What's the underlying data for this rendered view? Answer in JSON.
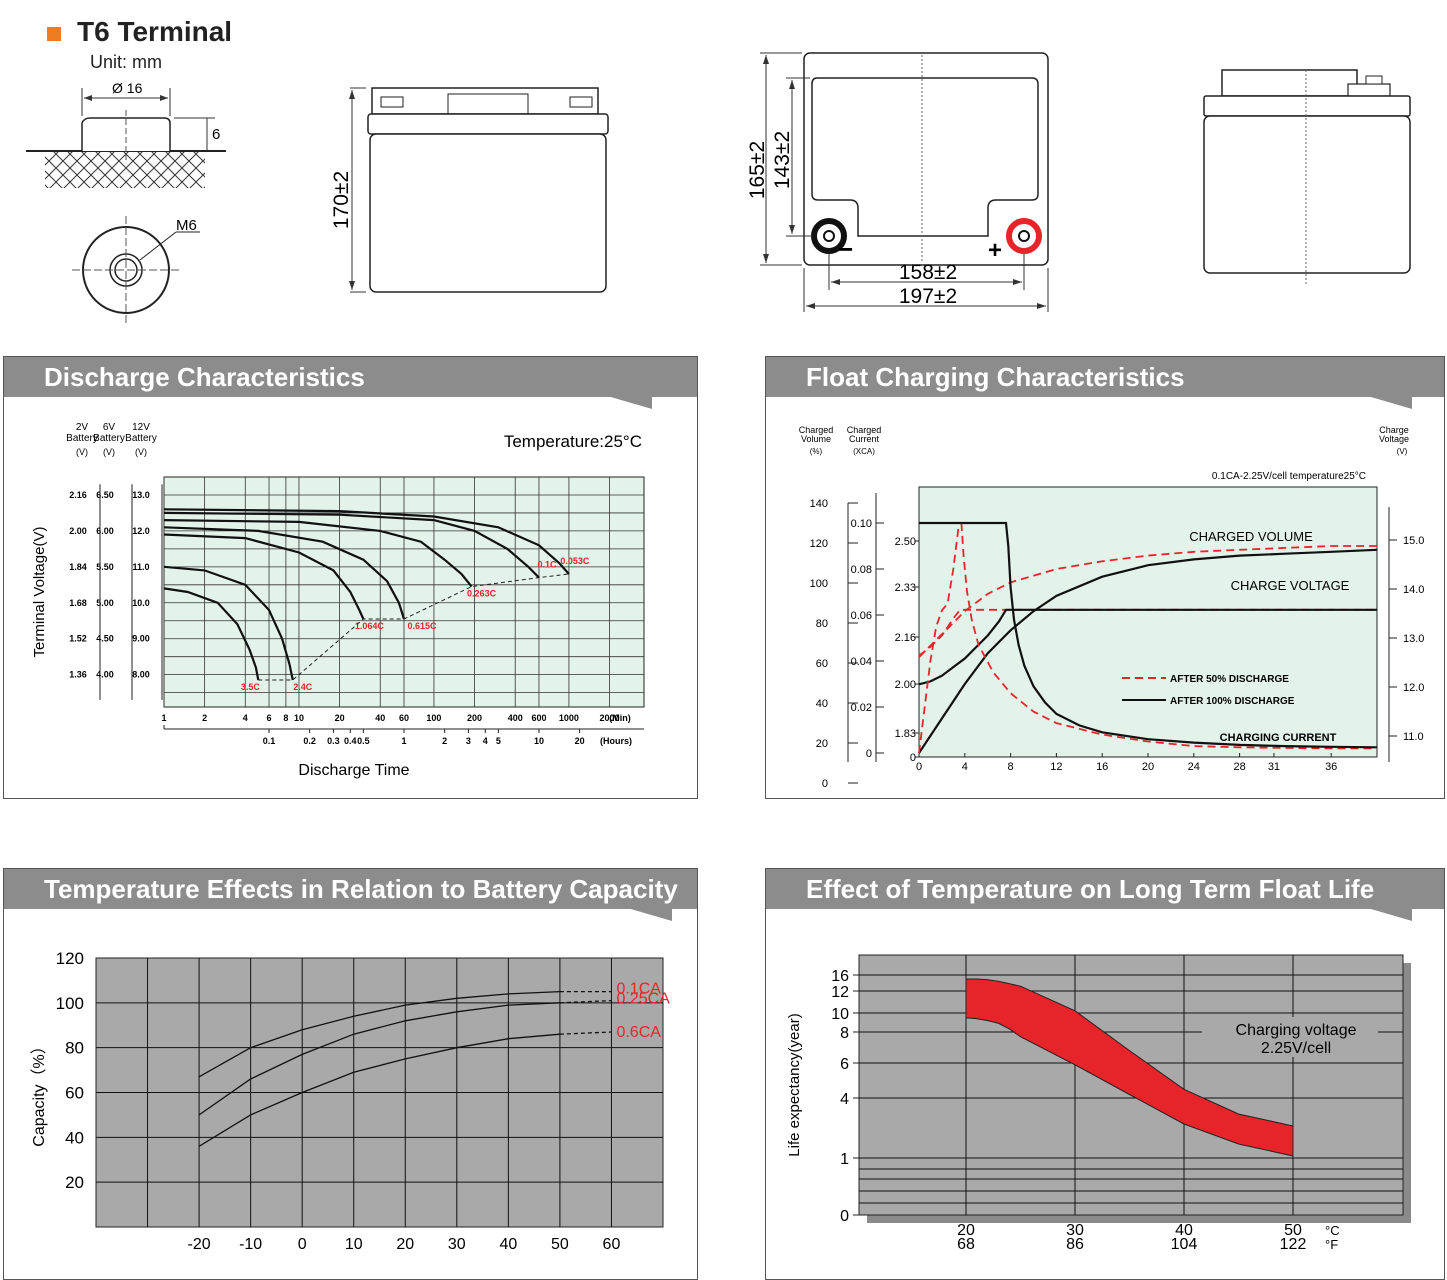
{
  "header": {
    "title": "T6 Terminal",
    "unit": "Unit: mm"
  },
  "drawings": {
    "terminal_dia": "Ø 16",
    "terminal_height": "6",
    "thread": "M6",
    "height_total": "170±2",
    "height_case": "165±2",
    "height_inner": "143±2",
    "width_terminal": "158±2",
    "width_total": "197±2",
    "minus": "−",
    "plus": "+"
  },
  "panels": {
    "discharge": "Discharge Characteristics",
    "float": "Float Charging Characteristics",
    "temp_capacity": "Temperature Effects in Relation to Battery Capacity",
    "float_life": "Effect of Temperature on Long Term Float Life"
  },
  "colors": {
    "accent": "#ee7d22",
    "header": "#8c8c8c",
    "chart_bg": "#e3f3e9",
    "red": "#e8242b",
    "gray_plot": "#a9a9a9"
  },
  "chart_data": [
    {
      "type": "line",
      "title": "Discharge Characteristics",
      "annotation": "Temperature:25°C",
      "ylabel": "Terminal Voltage(V)",
      "xlabel": "Discharge Time",
      "y_columns": [
        {
          "header": "2V Battery",
          "unit": "(V)",
          "ticks": [
            "2.16",
            "2.00",
            "1.84",
            "1.68",
            "1.52",
            "1.36"
          ]
        },
        {
          "header": "6V Battery",
          "unit": "(V)",
          "ticks": [
            "6.50",
            "6.00",
            "5.50",
            "5.00",
            "4.50",
            "4.00"
          ]
        },
        {
          "header": "12V Battery",
          "unit": "(V)",
          "ticks": [
            "13.0",
            "12.0",
            "11.0",
            "10.0",
            "9.00",
            "8.00"
          ]
        }
      ],
      "x_min_ticks": [
        "1",
        "2",
        "4",
        "6",
        "8",
        "10",
        "20",
        "40",
        "60",
        "100",
        "200",
        "400",
        "600",
        "1000",
        "2000"
      ],
      "x_min_unit": "(Min)",
      "x_hour_ticks": [
        "0.1",
        "0.2",
        "0.3",
        "0.4",
        "0.5",
        "1",
        "2",
        "3",
        "4",
        "5",
        "10",
        "20"
      ],
      "x_hour_unit": "(Hours)",
      "series": [
        {
          "name": "0.053C",
          "x_min": [
            1,
            20,
            100,
            300,
            600,
            850,
            1000
          ],
          "y": [
            12.6,
            12.55,
            12.4,
            12.1,
            11.6,
            11.1,
            10.8
          ]
        },
        {
          "name": "0.1C",
          "x_min": [
            1,
            20,
            100,
            200,
            350,
            500,
            600
          ],
          "y": [
            12.5,
            12.45,
            12.3,
            12.0,
            11.5,
            11.0,
            10.7
          ]
        },
        {
          "name": "0.263C",
          "x_min": [
            1,
            10,
            40,
            80,
            120,
            160,
            190
          ],
          "y": [
            12.3,
            12.25,
            12.0,
            11.7,
            11.2,
            10.8,
            10.45
          ]
        },
        {
          "name": "0.615C",
          "x_min": [
            1,
            5,
            15,
            30,
            45,
            55,
            60
          ],
          "y": [
            12.1,
            12.0,
            11.7,
            11.2,
            10.6,
            10.0,
            9.55
          ]
        },
        {
          "name": "1.064C",
          "x_min": [
            1,
            4,
            10,
            18,
            24,
            28,
            30
          ],
          "y": [
            11.9,
            11.8,
            11.4,
            10.9,
            10.3,
            9.8,
            9.55
          ]
        },
        {
          "name": "2.4C",
          "x_min": [
            1,
            2,
            4,
            6,
            7.5,
            8.5,
            9
          ],
          "y": [
            11.0,
            10.9,
            10.5,
            9.8,
            9.0,
            8.3,
            7.85
          ]
        },
        {
          "name": "3.5C",
          "x_min": [
            1,
            1.5,
            2.5,
            3.5,
            4.3,
            4.8,
            5
          ],
          "y": [
            10.4,
            10.3,
            10.0,
            9.4,
            8.7,
            8.2,
            7.85
          ]
        }
      ],
      "cutoff_line": {
        "x_min": [
          5,
          9,
          30,
          60,
          190,
          600,
          1000
        ],
        "y": [
          7.85,
          7.85,
          9.55,
          9.55,
          10.45,
          10.7,
          10.8
        ]
      }
    },
    {
      "type": "line",
      "title": "Float Charging Characteristics",
      "annotation": "0.1CA-2.25V/cell  temperature25°C",
      "axes": {
        "charged_volume": {
          "label": "Charged Volume",
          "unit": "(%)",
          "ticks": [
            "140",
            "120",
            "100",
            "80",
            "60",
            "40",
            "20",
            "0"
          ]
        },
        "charged_current": {
          "label": "Charged Current",
          "unit": "(XCA)",
          "ticks": [
            "0.10",
            "0.08",
            "0.06",
            "0.04",
            "0.02",
            "0"
          ]
        },
        "cell_voltage_ticks": [
          "2.50",
          "2.33",
          "2.16",
          "2.00",
          "1.83",
          "0"
        ],
        "charge_voltage": {
          "label": "Charge Voltage",
          "unit": "(V)",
          "ticks": [
            "15.0",
            "14.0",
            "13.0",
            "12.0",
            "11.0"
          ]
        }
      },
      "x_ticks": [
        "0",
        "4",
        "8",
        "12",
        "16",
        "20",
        "24",
        "28",
        "31",
        "36"
      ],
      "labels": {
        "charged_volume": "CHARGED VOLUME",
        "charge_voltage": "CHARGE VOLTAGE",
        "charging_current": "CHARGING CURRENT"
      },
      "legend": [
        {
          "name": "AFTER 50% DISCHARGE",
          "style": "dashed",
          "color": "#e8242b"
        },
        {
          "name": "AFTER 100% DISCHARGE",
          "style": "solid",
          "color": "#222222"
        }
      ],
      "series": [
        {
          "name": "Charged volume after 50% discharge",
          "x": [
            0,
            2,
            4,
            6,
            8,
            12,
            16,
            20,
            24,
            28,
            32,
            36,
            40
          ],
          "y": [
            50,
            62,
            74,
            83,
            89,
            96,
            100,
            103,
            105,
            106,
            107,
            108,
            108
          ]
        },
        {
          "name": "Charged volume after 100% discharge",
          "x": [
            0,
            2,
            4,
            6,
            8,
            10,
            12,
            16,
            20,
            24,
            28,
            32,
            36,
            40
          ],
          "y": [
            0,
            18,
            36,
            52,
            64,
            74,
            82,
            92,
            98,
            101,
            103,
            104,
            105,
            106
          ]
        },
        {
          "name": "Charge voltage after 50% discharge",
          "x": [
            0,
            1,
            2,
            3,
            3.6,
            4,
            6,
            8,
            20,
            40
          ],
          "y": [
            2.1,
            2.13,
            2.17,
            2.23,
            2.26,
            2.26,
            2.26,
            2.26,
            2.26,
            2.26
          ]
        },
        {
          "name": "Charge voltage after 100% discharge",
          "x": [
            0,
            1,
            2,
            3,
            4,
            5,
            6,
            7,
            7.6,
            8,
            20,
            40
          ],
          "y": [
            2.0,
            2.01,
            2.03,
            2.06,
            2.09,
            2.13,
            2.17,
            2.22,
            2.26,
            2.26,
            2.26,
            2.26
          ]
        },
        {
          "name": "Charging current after 50% discharge",
          "x": [
            0,
            0.5,
            1,
            1.5,
            2,
            2.5,
            3,
            3.5,
            3.7
          ],
          "y": [
            0,
            0.02,
            0.04,
            0.055,
            0.062,
            0.065,
            0.08,
            0.1,
            0.1
          ]
        },
        {
          "name": "Charging current after 50% discharge (decay)",
          "x": [
            3.7,
            3.9,
            4.2,
            4.6,
            5.2,
            6.5,
            8,
            10,
            12,
            16,
            20,
            24,
            28,
            32,
            36,
            40
          ],
          "y": [
            0.1,
            0.085,
            0.07,
            0.058,
            0.047,
            0.035,
            0.026,
            0.018,
            0.013,
            0.008,
            0.005,
            0.003,
            0.0025,
            0.0022,
            0.002,
            0.002
          ]
        },
        {
          "name": "Charging current after 100% discharge",
          "x": [
            0,
            7.6,
            7.8,
            8,
            8.3,
            8.7,
            9.2,
            10,
            11,
            12,
            14,
            16,
            20,
            24,
            28,
            32,
            36,
            40
          ],
          "y": [
            0.1,
            0.1,
            0.09,
            0.072,
            0.058,
            0.047,
            0.038,
            0.029,
            0.022,
            0.017,
            0.012,
            0.009,
            0.006,
            0.0045,
            0.0035,
            0.003,
            0.0027,
            0.0025
          ]
        }
      ]
    },
    {
      "type": "line",
      "title": "Temperature Effects in Relation to Battery Capacity",
      "ylabel": "Capacity（%）",
      "y_ticks": [
        "120",
        "100",
        "80",
        "60",
        "40",
        "20"
      ],
      "x_ticks": [
        "-20",
        "-10",
        "0",
        "10",
        "20",
        "30",
        "40",
        "50",
        "60"
      ],
      "ylim": [
        0,
        120
      ],
      "xlim": [
        -40,
        70
      ],
      "series": [
        {
          "name": "0.1CA",
          "x": [
            -20,
            -10,
            0,
            10,
            20,
            30,
            40,
            50
          ],
          "y": [
            67,
            80,
            88,
            94,
            99,
            102,
            104,
            105
          ],
          "ext_x": [
            50,
            60
          ],
          "ext_y": [
            105,
            105
          ]
        },
        {
          "name": "0.25CA",
          "x": [
            -20,
            -10,
            0,
            10,
            20,
            30,
            40,
            50
          ],
          "y": [
            50,
            66,
            77,
            86,
            92,
            96,
            99,
            100
          ],
          "ext_x": [
            50,
            60
          ],
          "ext_y": [
            100,
            101
          ]
        },
        {
          "name": "0.6CA",
          "x": [
            -20,
            -10,
            0,
            10,
            20,
            30,
            40,
            50
          ],
          "y": [
            36,
            50,
            60,
            69,
            75,
            80,
            84,
            86
          ],
          "ext_x": [
            50,
            60
          ],
          "ext_y": [
            86,
            87
          ]
        }
      ]
    },
    {
      "type": "area",
      "title": "Effect of Temperature on Long Term Float Life",
      "ylabel": "Life expectancy(year)",
      "y_ticks": [
        "16",
        "12",
        "10",
        "8",
        "6",
        "4",
        "1",
        "0"
      ],
      "x_ticks_c": [
        "20",
        "30",
        "40",
        "50"
      ],
      "x_ticks_f": [
        "68",
        "86",
        "104",
        "122"
      ],
      "x_unit_c": "°C",
      "x_unit_f": "°F",
      "annotation": "Charging voltage\n2.25V/cell",
      "series": [
        {
          "name": "upper",
          "x": [
            20,
            21,
            22,
            23,
            24,
            25,
            30,
            35,
            40,
            45,
            50
          ],
          "y": [
            15,
            15,
            14.8,
            14.4,
            13.8,
            13.2,
            10.2,
            6.8,
            4.5,
            3.2,
            2.6
          ]
        },
        {
          "name": "lower",
          "x": [
            20,
            21,
            22,
            23,
            24,
            25,
            30,
            35,
            40,
            45,
            50
          ],
          "y": [
            9.5,
            9.4,
            9.2,
            8.9,
            8.3,
            7.7,
            5.9,
            4.2,
            2.7,
            1.7,
            1.1
          ]
        }
      ]
    }
  ]
}
